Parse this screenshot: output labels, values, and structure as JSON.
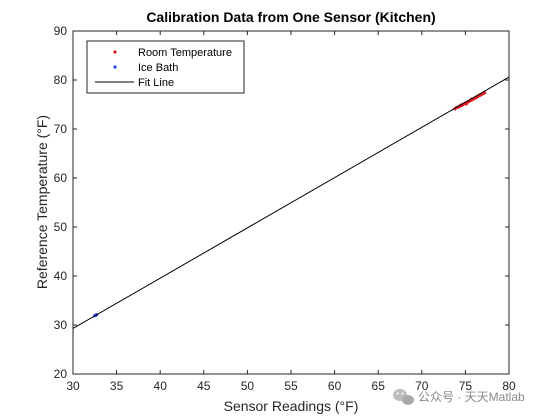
{
  "chart_data": {
    "type": "scatter",
    "title": "Calibration Data from One Sensor (Kitchen)",
    "xlabel": "Sensor Readings (°F)",
    "ylabel": "Reference Temperature (°F)",
    "xlim": [
      30,
      80
    ],
    "ylim": [
      20,
      90
    ],
    "xticks": [
      30,
      35,
      40,
      45,
      50,
      55,
      60,
      65,
      70,
      75,
      80
    ],
    "yticks": [
      20,
      30,
      40,
      50,
      60,
      70,
      80,
      90
    ],
    "grid": false,
    "legend_position": "top-left",
    "series": [
      {
        "name": "Room Temperature",
        "kind": "points",
        "color": "#e41a1c",
        "points": [
          [
            73.8,
            74.1
          ],
          [
            74.0,
            74.4
          ],
          [
            74.2,
            74.5
          ],
          [
            74.4,
            74.7
          ],
          [
            74.6,
            74.8
          ],
          [
            74.8,
            75.1
          ],
          [
            75.0,
            75.3
          ],
          [
            75.2,
            75.4
          ],
          [
            75.4,
            75.6
          ],
          [
            75.6,
            75.8
          ],
          [
            75.8,
            76.0
          ],
          [
            76.0,
            76.2
          ],
          [
            76.2,
            76.4
          ],
          [
            76.4,
            76.6
          ],
          [
            76.6,
            76.8
          ],
          [
            76.8,
            77.0
          ],
          [
            77.0,
            77.2
          ],
          [
            77.2,
            77.4
          ],
          [
            74.5,
            74.9
          ],
          [
            75.1,
            75.1
          ],
          [
            75.7,
            76.1
          ],
          [
            76.3,
            76.5
          ]
        ]
      },
      {
        "name": "Ice Bath",
        "kind": "points",
        "color": "#1f3fff",
        "points": [
          [
            32.5,
            31.9
          ],
          [
            32.6,
            32.0
          ],
          [
            32.7,
            32.1
          ]
        ]
      },
      {
        "name": "Fit Line",
        "kind": "line",
        "color": "#000000",
        "points": [
          [
            30,
            29.3
          ],
          [
            80,
            80.6
          ]
        ]
      }
    ]
  },
  "watermark": {
    "icon": "wechat-icon",
    "text": "公众号 · 天天Matlab"
  }
}
